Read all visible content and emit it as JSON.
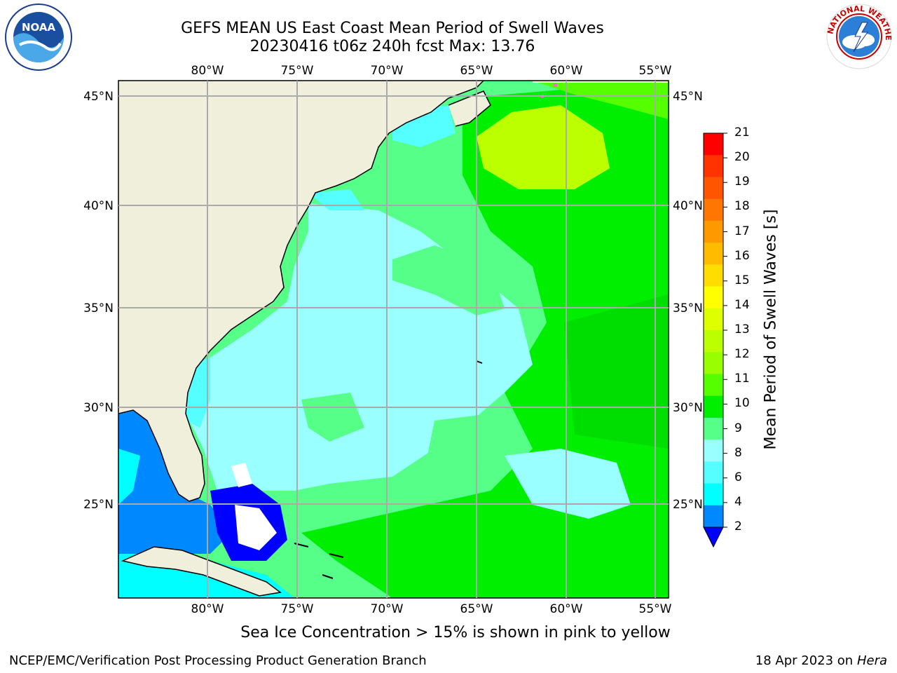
{
  "title_line1": "GEFS MEAN US East Coast Mean Period of Swell Waves",
  "title_line2": "20230416 t06z 240h fcst   Max: 13.76",
  "lon_labels": [
    "80°W",
    "75°W",
    "70°W",
    "65°W",
    "60°W",
    "55°W"
  ],
  "lat_labels": [
    "45°N",
    "40°N",
    "35°N",
    "30°N",
    "25°N"
  ],
  "colorbar": {
    "title": "Mean Period of Swell Waves [s]",
    "ticks": [
      "21",
      "20",
      "19",
      "18",
      "17",
      "16",
      "15",
      "14",
      "13",
      "12",
      "11",
      "10",
      "9",
      "8",
      "6",
      "4",
      "2"
    ],
    "colors": [
      "#ff0000",
      "#ff3300",
      "#ff5500",
      "#ff7700",
      "#ff9900",
      "#ffbb00",
      "#ffdd00",
      "#ffff00",
      "#ddff00",
      "#bbff00",
      "#99ff00",
      "#55ff00",
      "#00ee00",
      "#55ff88",
      "#99ffff",
      "#55ffff",
      "#00ffff",
      "#0088ff",
      "#0000ff"
    ]
  },
  "note": "Sea Ice Concentration > 15% is shown in pink to yellow",
  "footer_left": "NCEP/EMC/Verification Post Processing Product Generation Branch",
  "footer_date": "18 Apr 2023 on",
  "footer_host": "Hera",
  "logos": {
    "left": "NOAA",
    "right": "NATIONAL WEATHER SERVICE"
  }
}
